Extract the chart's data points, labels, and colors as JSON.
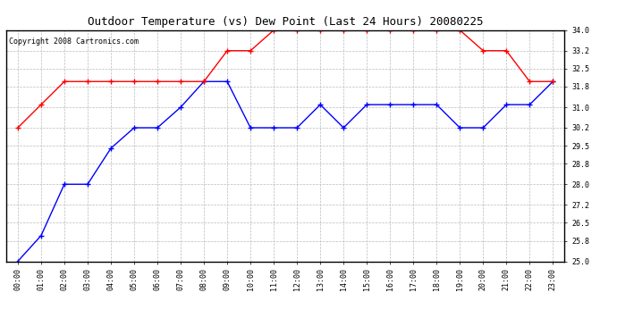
{
  "title": "Outdoor Temperature (vs) Dew Point (Last 24 Hours) 20080225",
  "copyright_text": "Copyright 2008 Cartronics.com",
  "x_labels": [
    "00:00",
    "01:00",
    "02:00",
    "03:00",
    "04:00",
    "05:00",
    "06:00",
    "07:00",
    "08:00",
    "09:00",
    "10:00",
    "11:00",
    "12:00",
    "13:00",
    "14:00",
    "15:00",
    "16:00",
    "17:00",
    "18:00",
    "19:00",
    "20:00",
    "21:00",
    "22:00",
    "23:00"
  ],
  "temp_color": "#0000FF",
  "dew_color": "#FF0000",
  "background_color": "#FFFFFF",
  "grid_color": "#BBBBBB",
  "ylim": [
    25.0,
    34.0
  ],
  "yticks": [
    25.0,
    25.8,
    26.5,
    27.2,
    28.0,
    28.8,
    29.5,
    30.2,
    31.0,
    31.8,
    32.5,
    33.2,
    34.0
  ],
  "temp_data": [
    25.0,
    26.0,
    28.0,
    28.0,
    29.4,
    30.2,
    30.2,
    31.0,
    32.0,
    32.0,
    30.2,
    30.2,
    30.2,
    31.1,
    30.2,
    31.1,
    31.1,
    31.1,
    31.1,
    30.2,
    30.2,
    31.1,
    31.1,
    32.0
  ],
  "dew_data": [
    30.2,
    31.1,
    32.0,
    32.0,
    32.0,
    32.0,
    32.0,
    32.0,
    32.0,
    33.2,
    33.2,
    34.0,
    34.0,
    34.0,
    34.0,
    34.0,
    34.0,
    34.0,
    34.0,
    34.0,
    33.2,
    33.2,
    32.0,
    32.0
  ],
  "marker": "+",
  "marker_size": 4,
  "line_width": 1.0,
  "title_fontsize": 9,
  "tick_fontsize": 6,
  "copyright_fontsize": 6
}
